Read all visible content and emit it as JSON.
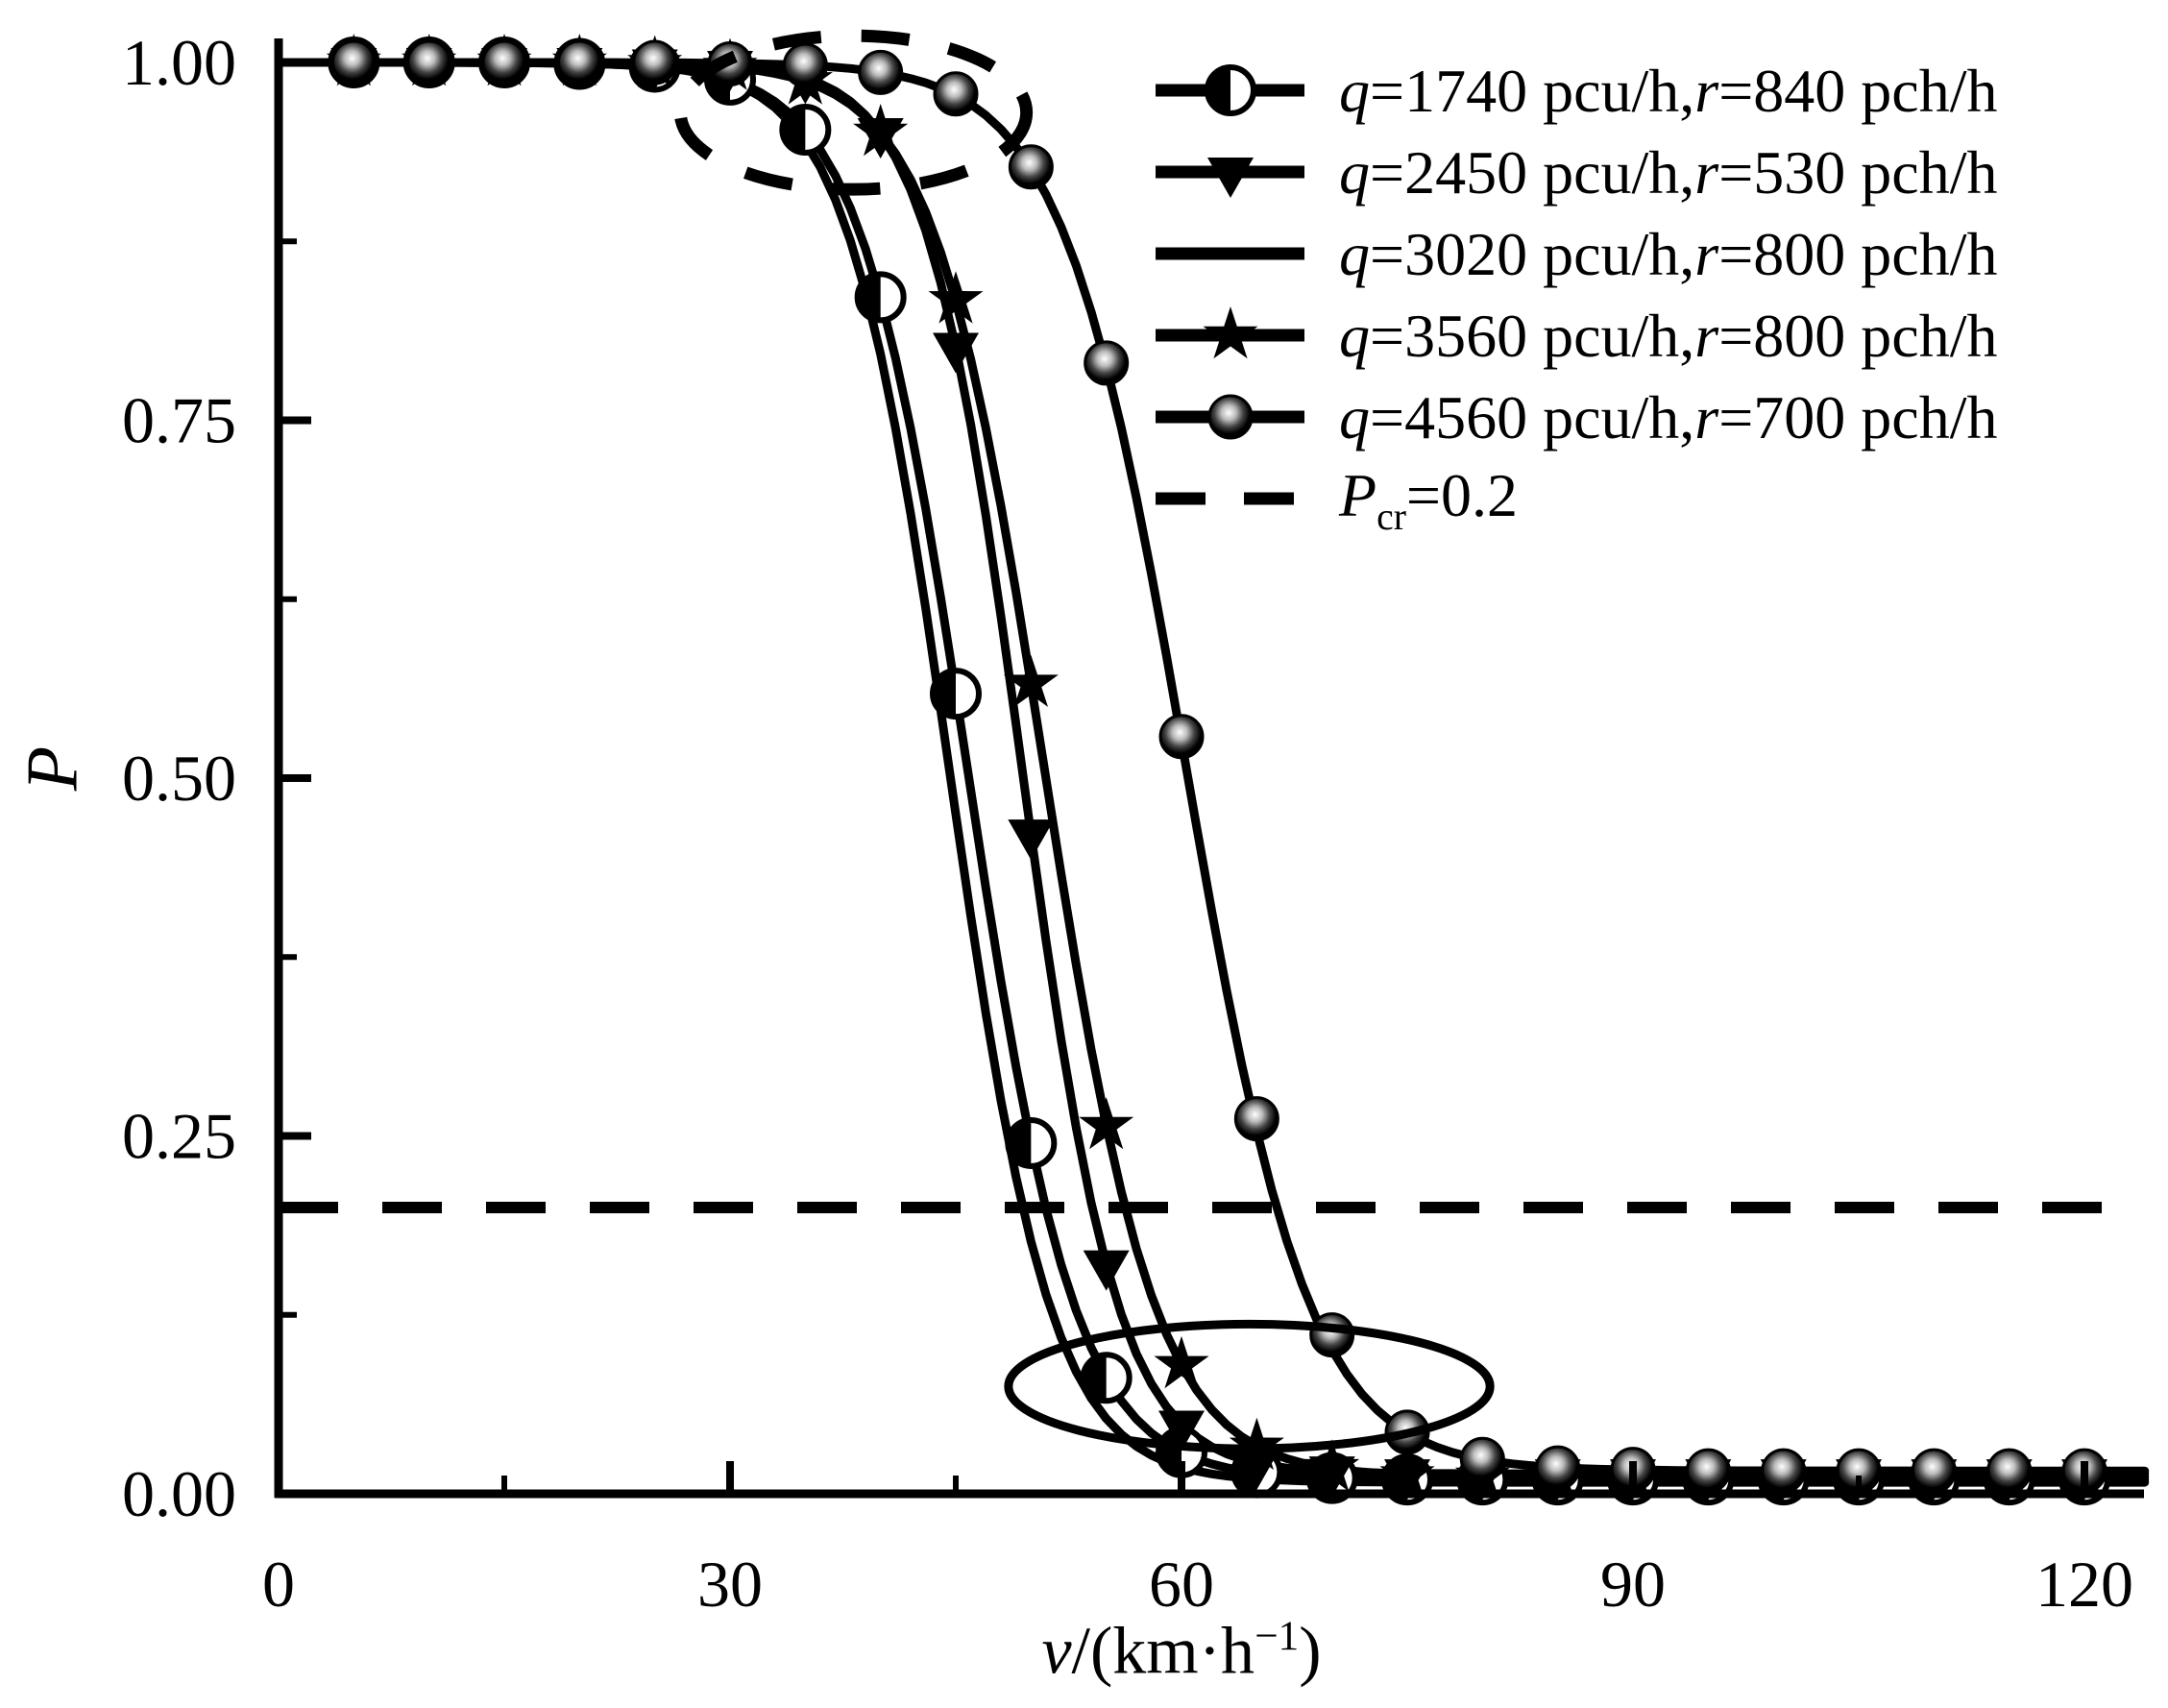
{
  "figure": {
    "background": "#ffffff",
    "ink_color": "#000000"
  },
  "chart_data": {
    "type": "line",
    "title": "",
    "xlabel": "v/(km·h^{−1})",
    "ylabel": "P",
    "xlim": [
      0,
      120
    ],
    "ylim": [
      0.0,
      1.0
    ],
    "grid": false,
    "legend_position": "top-right",
    "xticks": {
      "major": [
        0,
        30,
        60,
        90,
        120
      ],
      "minor": [
        15,
        45,
        75,
        105
      ],
      "labels": [
        "0",
        "30",
        "60",
        "90",
        "120"
      ]
    },
    "yticks": {
      "major": [
        0.0,
        0.25,
        0.5,
        0.75,
        1.0
      ],
      "minor": [
        0.125,
        0.375,
        0.625,
        0.875
      ],
      "labels": [
        "0.00",
        "0.25",
        "0.50",
        "0.75",
        "1.00"
      ]
    },
    "series": [
      {
        "label": "q=1740 pcu/h,r=840 pch/h",
        "marker": "half-filled-circle",
        "marker_step": 5,
        "model": {
          "v0": 45.8,
          "k": 3.6,
          "floor": 0.01
        },
        "points": [
          [
            0,
            1
          ],
          [
            5,
            1
          ],
          [
            10,
            1
          ],
          [
            15,
            1
          ],
          [
            20,
            0.999
          ],
          [
            25,
            0.997
          ],
          [
            30,
            0.988
          ],
          [
            35,
            0.953
          ],
          [
            40,
            0.836
          ],
          [
            45,
            0.559
          ],
          [
            50,
            0.245
          ],
          [
            55,
            0.081
          ],
          [
            60,
            0.029
          ],
          [
            65,
            0.015
          ],
          [
            70,
            0.011
          ],
          [
            75,
            0.01
          ],
          [
            80,
            0.01
          ],
          [
            85,
            0.01
          ],
          [
            90,
            0.01
          ],
          [
            95,
            0.01
          ],
          [
            100,
            0.01
          ],
          [
            105,
            0.01
          ],
          [
            110,
            0.01
          ],
          [
            115,
            0.01
          ],
          [
            120,
            0.01
          ]
        ]
      },
      {
        "label": "q=2450 pcu/h,r=530 pch/h",
        "marker": "triangle-down",
        "marker_step": 5,
        "model": {
          "v0": 49.4,
          "k": 3.2,
          "floor": 0.014
        },
        "points": [
          [
            0,
            1
          ],
          [
            5,
            1
          ],
          [
            10,
            1
          ],
          [
            15,
            1
          ],
          [
            20,
            1
          ],
          [
            25,
            0.999
          ],
          [
            30,
            0.998
          ],
          [
            35,
            0.989
          ],
          [
            40,
            0.951
          ],
          [
            45,
            0.801
          ],
          [
            50,
            0.461
          ],
          [
            55,
            0.16
          ],
          [
            60,
            0.048
          ],
          [
            65,
            0.021
          ],
          [
            70,
            0.016
          ],
          [
            75,
            0.014
          ],
          [
            80,
            0.014
          ],
          [
            85,
            0.014
          ],
          [
            90,
            0.014
          ],
          [
            95,
            0.014
          ],
          [
            100,
            0.014
          ],
          [
            105,
            0.014
          ],
          [
            110,
            0.014
          ],
          [
            115,
            0.014
          ],
          [
            120,
            0.014
          ]
        ]
      },
      {
        "label": "q=3020 pcu/h,r=800 pch/h",
        "marker": "none",
        "marker_step": 5,
        "model": {
          "v0": 44.6,
          "k": 3.4,
          "floor": 0.008
        },
        "points": [
          [
            0,
            1
          ],
          [
            5,
            1
          ],
          [
            10,
            1
          ],
          [
            15,
            1
          ],
          [
            20,
            0.999
          ],
          [
            25,
            0.997
          ],
          [
            30,
            0.986
          ],
          [
            35,
            0.941
          ],
          [
            40,
            0.79
          ],
          [
            45,
            0.475
          ],
          [
            50,
            0.177
          ],
          [
            55,
            0.052
          ],
          [
            60,
            0.019
          ],
          [
            65,
            0.01
          ],
          [
            70,
            0.008
          ],
          [
            75,
            0.008
          ],
          [
            80,
            0.008
          ],
          [
            85,
            0.008
          ],
          [
            90,
            0.008
          ],
          [
            95,
            0.008
          ],
          [
            100,
            0.008
          ],
          [
            105,
            0.008
          ],
          [
            110,
            0.008
          ],
          [
            115,
            0.008
          ],
          [
            120,
            0.008
          ]
        ]
      },
      {
        "label": "q=3560 pcu/h,r=800 pch/h",
        "marker": "star",
        "marker_step": 5,
        "model": {
          "v0": 50.9,
          "k": 3.7,
          "floor": 0.012
        },
        "points": [
          [
            0,
            1
          ],
          [
            5,
            1
          ],
          [
            10,
            1
          ],
          [
            15,
            1
          ],
          [
            20,
            1
          ],
          [
            25,
            0.999
          ],
          [
            30,
            0.997
          ],
          [
            35,
            0.987
          ],
          [
            40,
            0.951
          ],
          [
            45,
            0.834
          ],
          [
            50,
            0.566
          ],
          [
            55,
            0.257
          ],
          [
            60,
            0.09
          ],
          [
            65,
            0.033
          ],
          [
            70,
            0.018
          ],
          [
            75,
            0.013
          ],
          [
            80,
            0.012
          ],
          [
            85,
            0.012
          ],
          [
            90,
            0.012
          ],
          [
            95,
            0.012
          ],
          [
            100,
            0.012
          ],
          [
            105,
            0.012
          ],
          [
            110,
            0.012
          ],
          [
            115,
            0.012
          ],
          [
            120,
            0.012
          ]
        ]
      },
      {
        "label": "q=4560 pcu/h,r=700 pch/h",
        "marker": "sphere",
        "marker_step": 5,
        "model": {
          "v0": 60.3,
          "k": 4.1,
          "floor": 0.016
        },
        "points": [
          [
            0,
            1
          ],
          [
            5,
            1
          ],
          [
            10,
            1
          ],
          [
            15,
            1
          ],
          [
            20,
            1
          ],
          [
            25,
            1
          ],
          [
            30,
            0.999
          ],
          [
            35,
            0.998
          ],
          [
            40,
            0.993
          ],
          [
            45,
            0.978
          ],
          [
            50,
            0.927
          ],
          [
            55,
            0.79
          ],
          [
            60,
            0.529
          ],
          [
            65,
            0.262
          ],
          [
            70,
            0.111
          ],
          [
            75,
            0.043
          ],
          [
            80,
            0.024
          ],
          [
            85,
            0.018
          ],
          [
            90,
            0.017
          ],
          [
            95,
            0.016
          ],
          [
            100,
            0.016
          ],
          [
            105,
            0.016
          ],
          [
            110,
            0.016
          ],
          [
            115,
            0.016
          ],
          [
            120,
            0.016
          ]
        ]
      }
    ],
    "threshold_line": {
      "label": "P_{cr}=0.2",
      "value": 0.2,
      "style": "dashed"
    },
    "annotations": [
      {
        "shape": "ellipse",
        "style": "dashed",
        "v": 38.2,
        "P": 0.965,
        "rv": 11.5,
        "rP": 0.0537
      },
      {
        "shape": "ellipse",
        "style": "solid",
        "v": 64.5,
        "P": 0.075,
        "rv": 16.0,
        "rP": 0.0435
      }
    ]
  }
}
